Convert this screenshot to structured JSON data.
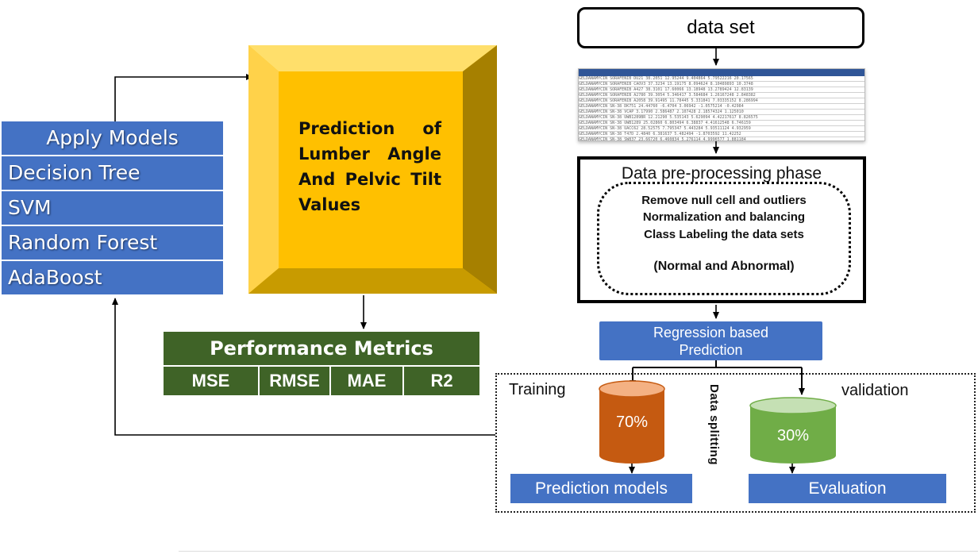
{
  "models": {
    "title": "Apply Models",
    "items": [
      "Decision Tree",
      "SVM",
      "Random Forest",
      "AdaBoost"
    ]
  },
  "prediction": {
    "text": "Prediction of Lumber Angle And Pelvic Tilt Values"
  },
  "metrics": {
    "title": "Performance Metrics",
    "items": [
      "MSE",
      "RMSE",
      "MAE",
      "R2"
    ]
  },
  "dataset": {
    "label": "data set"
  },
  "preprocessing": {
    "title": "Data pre-processing phase",
    "steps": [
      "Remove null cell and outliers",
      "Normalization and balancing",
      "Class Labeling the data sets"
    ],
    "classes": "(Normal and Abnormal)"
  },
  "regression": {
    "line1": "Regression based",
    "line2": "Prediction"
  },
  "split": {
    "training_label": "Training",
    "validation_label": "validation",
    "splitting_label": "Data splitting",
    "training_pct": "70%",
    "validation_pct": "30%"
  },
  "outputs": {
    "models": "Prediction models",
    "evaluation": "Evaluation"
  },
  "colors": {
    "blue": "#4472c4",
    "gold": "#ffc000",
    "green_dark": "#3f6327",
    "orange": "#c55a11",
    "green": "#70ad47"
  }
}
